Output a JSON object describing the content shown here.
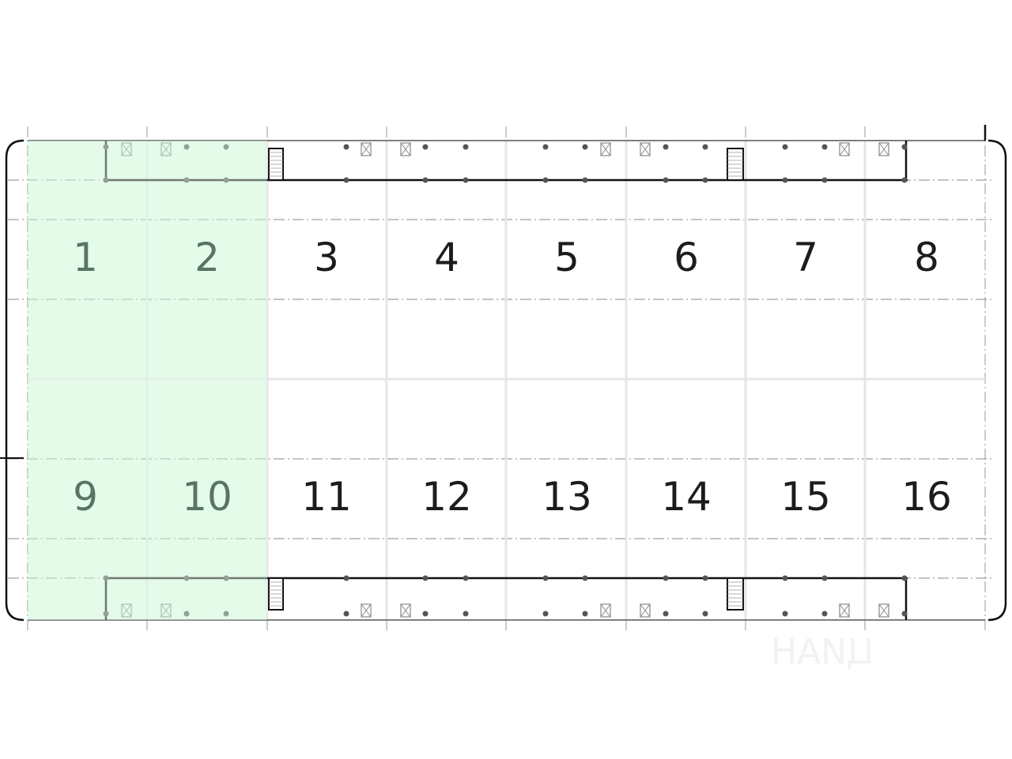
{
  "plan": {
    "highlight_color": "#e3fbe8",
    "selected_text_color": "#587564",
    "text_color": "#1c1c1c",
    "units": [
      {
        "label": "1",
        "selected": true
      },
      {
        "label": "2",
        "selected": true
      },
      {
        "label": "3",
        "selected": false
      },
      {
        "label": "4",
        "selected": false
      },
      {
        "label": "5",
        "selected": false
      },
      {
        "label": "6",
        "selected": false
      },
      {
        "label": "7",
        "selected": false
      },
      {
        "label": "8",
        "selected": false
      },
      {
        "label": "9",
        "selected": true
      },
      {
        "label": "10",
        "selected": true
      },
      {
        "label": "11",
        "selected": false
      },
      {
        "label": "12",
        "selected": false
      },
      {
        "label": "13",
        "selected": false
      },
      {
        "label": "14",
        "selected": false
      },
      {
        "label": "15",
        "selected": false
      },
      {
        "label": "16",
        "selected": false
      }
    ],
    "watermark": "ЦИАН"
  }
}
